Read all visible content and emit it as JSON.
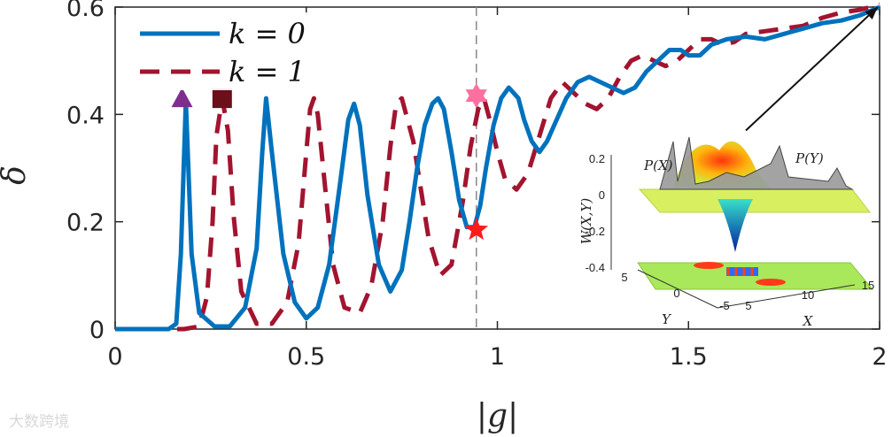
{
  "chart_data": {
    "type": "line",
    "xlabel": "|g|",
    "ylabel": "δ",
    "xlim": [
      0,
      2
    ],
    "ylim": [
      0,
      0.6
    ],
    "xticks": [
      "0",
      "0.5",
      "1",
      "1.5",
      "2"
    ],
    "yticks": [
      "0",
      "0.2",
      "0.4",
      "0.6"
    ],
    "grid": false,
    "legend_position": "top-left",
    "colors": {
      "k0": "#0072bd",
      "k1": "#a2142f",
      "triangle": "#7e2f8e",
      "square": "#6b0f1a",
      "star_pink": "#ff6f9f",
      "star_red": "#ff1a1a"
    },
    "series": [
      {
        "name": "k = 0",
        "style": "solid",
        "x": [
          0,
          0.14,
          0.16,
          0.172,
          0.185,
          0.2,
          0.22,
          0.26,
          0.3,
          0.34,
          0.37,
          0.385,
          0.395,
          0.41,
          0.44,
          0.47,
          0.5,
          0.53,
          0.56,
          0.59,
          0.61,
          0.625,
          0.64,
          0.66,
          0.69,
          0.72,
          0.75,
          0.77,
          0.79,
          0.81,
          0.83,
          0.845,
          0.86,
          0.88,
          0.9,
          0.92,
          0.94,
          0.955,
          0.97,
          0.99,
          1.01,
          1.03,
          1.055,
          1.07,
          1.09,
          1.11,
          1.13,
          1.155,
          1.18,
          1.21,
          1.24,
          1.27,
          1.3,
          1.33,
          1.36,
          1.39,
          1.42,
          1.45,
          1.48,
          1.5,
          1.53,
          1.56,
          1.6,
          1.65,
          1.7,
          1.75,
          1.8,
          1.85,
          1.9,
          1.95,
          2.0
        ],
        "y": [
          0,
          0,
          0.01,
          0.14,
          0.425,
          0.14,
          0.03,
          0.005,
          0.005,
          0.04,
          0.15,
          0.33,
          0.43,
          0.33,
          0.14,
          0.05,
          0.02,
          0.04,
          0.12,
          0.28,
          0.39,
          0.42,
          0.38,
          0.25,
          0.12,
          0.07,
          0.11,
          0.2,
          0.3,
          0.38,
          0.42,
          0.43,
          0.41,
          0.33,
          0.24,
          0.19,
          0.19,
          0.23,
          0.3,
          0.38,
          0.43,
          0.45,
          0.43,
          0.39,
          0.35,
          0.33,
          0.35,
          0.39,
          0.43,
          0.46,
          0.47,
          0.46,
          0.45,
          0.44,
          0.45,
          0.48,
          0.5,
          0.52,
          0.52,
          0.51,
          0.51,
          0.53,
          0.54,
          0.545,
          0.54,
          0.55,
          0.56,
          0.57,
          0.575,
          0.585,
          0.6
        ]
      },
      {
        "name": "k = 1",
        "style": "dashed",
        "x": [
          0,
          0.18,
          0.22,
          0.24,
          0.255,
          0.265,
          0.28,
          0.295,
          0.31,
          0.33,
          0.37,
          0.41,
          0.45,
          0.48,
          0.5,
          0.51,
          0.52,
          0.53,
          0.55,
          0.57,
          0.6,
          0.64,
          0.67,
          0.7,
          0.72,
          0.735,
          0.75,
          0.78,
          0.82,
          0.85,
          0.88,
          0.91,
          0.93,
          0.95,
          0.965,
          0.98,
          1.0,
          1.02,
          1.05,
          1.08,
          1.11,
          1.14,
          1.17,
          1.2,
          1.23,
          1.26,
          1.29,
          1.32,
          1.35,
          1.38,
          1.41,
          1.44,
          1.47,
          1.5,
          1.53,
          1.56,
          1.59,
          1.62,
          1.65,
          1.7,
          1.75,
          1.8,
          1.85,
          1.9,
          1.95,
          2.0
        ],
        "y": [
          0,
          0,
          0.005,
          0.06,
          0.2,
          0.36,
          0.43,
          0.37,
          0.21,
          0.07,
          0.01,
          0.01,
          0.05,
          0.16,
          0.33,
          0.41,
          0.43,
          0.4,
          0.26,
          0.12,
          0.04,
          0.03,
          0.08,
          0.2,
          0.34,
          0.42,
          0.43,
          0.35,
          0.17,
          0.1,
          0.12,
          0.24,
          0.34,
          0.41,
          0.43,
          0.39,
          0.33,
          0.28,
          0.26,
          0.29,
          0.36,
          0.43,
          0.46,
          0.44,
          0.42,
          0.41,
          0.43,
          0.47,
          0.5,
          0.51,
          0.5,
          0.49,
          0.5,
          0.52,
          0.54,
          0.54,
          0.53,
          0.535,
          0.55,
          0.555,
          0.56,
          0.565,
          0.58,
          0.59,
          0.595,
          0.605
        ]
      }
    ],
    "markers": [
      {
        "shape": "triangle",
        "x": 0.175,
        "y": 0.43,
        "color": "#7e2f8e"
      },
      {
        "shape": "square",
        "x": 0.28,
        "y": 0.43,
        "color": "#6b0f1a"
      },
      {
        "shape": "star",
        "x": 0.945,
        "y": 0.435,
        "color": "#ff6f9f"
      },
      {
        "shape": "star",
        "x": 0.945,
        "y": 0.185,
        "color": "#ff1a1a"
      }
    ],
    "vline_x": 0.945,
    "arrow": {
      "x_from": 1.65,
      "y_from": 0.37,
      "x_to": 1.995,
      "y_to": 0.6
    },
    "inset": {
      "title_left": "P(X)",
      "title_right": "P(Y)",
      "zlabel": "W(X,Y)",
      "xlabel": "X",
      "ylabel": "Y",
      "zticks": [
        "0.2",
        "0",
        "-0.2",
        "-0.4"
      ],
      "xticks": [
        "5",
        "10",
        "15"
      ],
      "yticks": [
        "5",
        "0",
        "-5"
      ]
    }
  },
  "watermark": "大数跨境"
}
